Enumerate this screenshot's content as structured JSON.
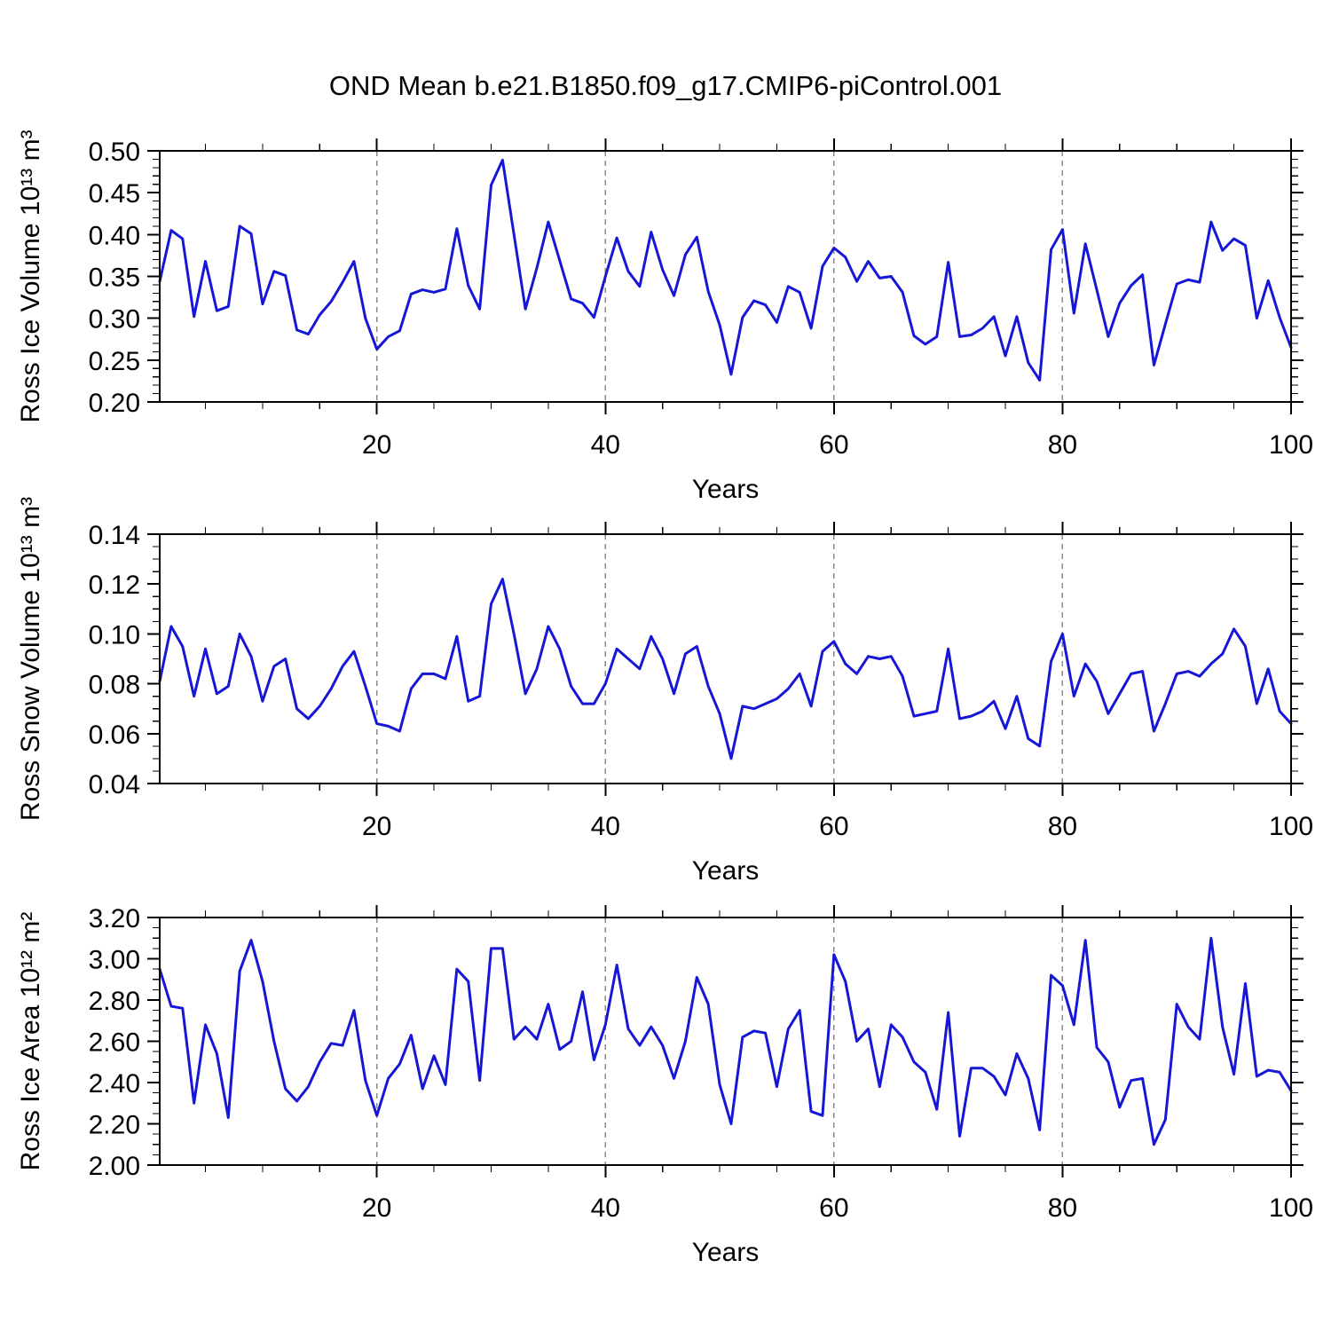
{
  "title": "OND Mean b.e21.B1850.f09_g17.CMIP6-piControl.001",
  "style": {
    "line_color": "#1616d6",
    "grid_color": "#8a8a8a",
    "axis_color": "#000000",
    "background": "#ffffff"
  },
  "x_axis": {
    "label": "Years",
    "lim": [
      1,
      100
    ],
    "major_ticks": [
      20,
      40,
      60,
      80,
      100
    ],
    "minor_step": 5,
    "gridlines": [
      20,
      40,
      60,
      80
    ]
  },
  "years": [
    1,
    2,
    3,
    4,
    5,
    6,
    7,
    8,
    9,
    10,
    11,
    12,
    13,
    14,
    15,
    16,
    17,
    18,
    19,
    20,
    21,
    22,
    23,
    24,
    25,
    26,
    27,
    28,
    29,
    30,
    31,
    32,
    33,
    34,
    35,
    36,
    37,
    38,
    39,
    40,
    41,
    42,
    43,
    44,
    45,
    46,
    47,
    48,
    49,
    50,
    51,
    52,
    53,
    54,
    55,
    56,
    57,
    58,
    59,
    60,
    61,
    62,
    63,
    64,
    65,
    66,
    67,
    68,
    69,
    70,
    71,
    72,
    73,
    74,
    75,
    76,
    77,
    78,
    79,
    80,
    81,
    82,
    83,
    84,
    85,
    86,
    87,
    88,
    89,
    90,
    91,
    92,
    93,
    94,
    95,
    96,
    97,
    98,
    99,
    100
  ],
  "chart_data": [
    {
      "type": "line",
      "series_name": "Ross Ice Volume",
      "ylabel": "Ross Ice Volume 10¹³ m³",
      "xlabel": "Years",
      "ylim": [
        0.2,
        0.5
      ],
      "ytick_step": 0.05,
      "yminor_step": 0.01,
      "ytick_decimals": 2,
      "grid": "dashed-vertical",
      "legend": "none",
      "values": [
        0.344,
        0.405,
        0.395,
        0.302,
        0.368,
        0.309,
        0.314,
        0.41,
        0.401,
        0.317,
        0.356,
        0.351,
        0.286,
        0.281,
        0.304,
        0.32,
        0.343,
        0.368,
        0.3,
        0.263,
        0.278,
        0.285,
        0.329,
        0.334,
        0.331,
        0.335,
        0.407,
        0.339,
        0.311,
        0.459,
        0.489,
        0.4,
        0.311,
        0.36,
        0.415,
        0.369,
        0.323,
        0.318,
        0.301,
        0.35,
        0.396,
        0.356,
        0.338,
        0.403,
        0.358,
        0.327,
        0.376,
        0.397,
        0.332,
        0.292,
        0.233,
        0.301,
        0.321,
        0.316,
        0.295,
        0.338,
        0.331,
        0.288,
        0.362,
        0.384,
        0.373,
        0.344,
        0.368,
        0.348,
        0.35,
        0.331,
        0.279,
        0.269,
        0.278,
        0.367,
        0.278,
        0.28,
        0.288,
        0.302,
        0.255,
        0.302,
        0.247,
        0.226,
        0.382,
        0.406,
        0.306,
        0.389,
        0.334,
        0.278,
        0.318,
        0.339,
        0.352,
        0.244,
        0.293,
        0.341,
        0.346,
        0.343,
        0.415,
        0.381,
        0.395,
        0.387,
        0.3,
        0.345,
        0.301,
        0.265
      ]
    },
    {
      "type": "line",
      "series_name": "Ross Snow Volume",
      "ylabel": "Ross Snow Volume 10¹³ m³",
      "xlabel": "Years",
      "ylim": [
        0.04,
        0.14
      ],
      "ytick_step": 0.02,
      "yminor_step": 0.005,
      "ytick_decimals": 2,
      "grid": "dashed-vertical",
      "legend": "none",
      "values": [
        0.081,
        0.103,
        0.095,
        0.075,
        0.094,
        0.076,
        0.079,
        0.1,
        0.091,
        0.073,
        0.087,
        0.09,
        0.07,
        0.066,
        0.071,
        0.078,
        0.087,
        0.093,
        0.079,
        0.064,
        0.063,
        0.061,
        0.078,
        0.084,
        0.084,
        0.082,
        0.099,
        0.073,
        0.075,
        0.112,
        0.122,
        0.1,
        0.076,
        0.086,
        0.103,
        0.094,
        0.079,
        0.072,
        0.072,
        0.08,
        0.094,
        0.09,
        0.086,
        0.099,
        0.09,
        0.076,
        0.092,
        0.095,
        0.079,
        0.068,
        0.05,
        0.071,
        0.07,
        0.072,
        0.074,
        0.078,
        0.084,
        0.071,
        0.093,
        0.097,
        0.088,
        0.084,
        0.091,
        0.09,
        0.091,
        0.083,
        0.067,
        0.068,
        0.069,
        0.094,
        0.066,
        0.067,
        0.069,
        0.073,
        0.062,
        0.075,
        0.058,
        0.055,
        0.089,
        0.1,
        0.075,
        0.088,
        0.081,
        0.068,
        0.076,
        0.084,
        0.085,
        0.061,
        0.072,
        0.084,
        0.085,
        0.083,
        0.088,
        0.092,
        0.102,
        0.095,
        0.072,
        0.086,
        0.069,
        0.064
      ]
    },
    {
      "type": "line",
      "series_name": "Ross Ice Area",
      "ylabel": "Ross Ice Area 10¹² m²",
      "xlabel": "Years",
      "ylim": [
        2.0,
        3.2
      ],
      "ytick_step": 0.2,
      "yminor_step": 0.05,
      "ytick_decimals": 2,
      "grid": "dashed-vertical",
      "legend": "none",
      "values": [
        2.95,
        2.77,
        2.76,
        2.3,
        2.68,
        2.54,
        2.23,
        2.94,
        3.09,
        2.89,
        2.6,
        2.37,
        2.31,
        2.38,
        2.5,
        2.59,
        2.58,
        2.75,
        2.41,
        2.24,
        2.42,
        2.49,
        2.63,
        2.37,
        2.53,
        2.39,
        2.95,
        2.89,
        2.41,
        3.05,
        3.05,
        2.61,
        2.67,
        2.61,
        2.78,
        2.56,
        2.6,
        2.84,
        2.51,
        2.68,
        2.97,
        2.66,
        2.58,
        2.67,
        2.58,
        2.42,
        2.6,
        2.91,
        2.78,
        2.39,
        2.2,
        2.62,
        2.65,
        2.64,
        2.38,
        2.66,
        2.75,
        2.26,
        2.24,
        3.02,
        2.89,
        2.6,
        2.66,
        2.38,
        2.68,
        2.62,
        2.5,
        2.45,
        2.27,
        2.74,
        2.14,
        2.47,
        2.47,
        2.43,
        2.34,
        2.54,
        2.42,
        2.17,
        2.92,
        2.87,
        2.68,
        3.09,
        2.57,
        2.5,
        2.28,
        2.41,
        2.42,
        2.1,
        2.22,
        2.78,
        2.67,
        2.61,
        3.1,
        2.67,
        2.44,
        2.88,
        2.43,
        2.46,
        2.45,
        2.36
      ]
    }
  ]
}
